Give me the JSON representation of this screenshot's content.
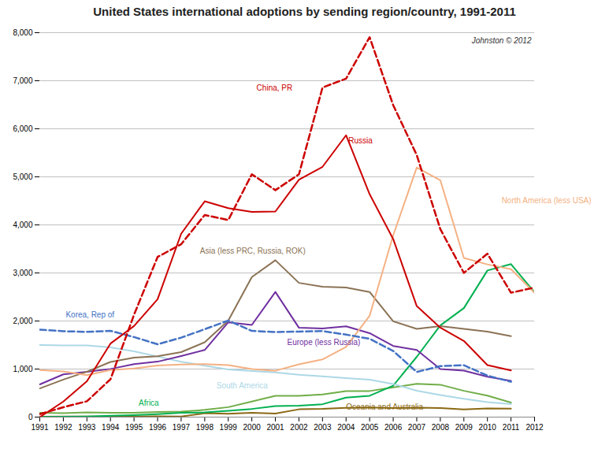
{
  "chart_data": {
    "type": "line",
    "title": "United States international adoptions by sending region/country, 1991-2011",
    "x": [
      1991,
      1992,
      1993,
      1994,
      1995,
      1996,
      1997,
      1998,
      1999,
      2000,
      2001,
      2002,
      2003,
      2004,
      2005,
      2006,
      2007,
      2008,
      2009,
      2010,
      2011,
      2012
    ],
    "series": [
      {
        "color": "#cc0000",
        "line_style": "dashed",
        "values": [
          61,
          206,
          330,
          787,
          2130,
          3333,
          3597,
          4206,
          4101,
          5053,
          4723,
          5053,
          6859,
          7044,
          7906,
          6493,
          5453,
          3912,
          3001,
          3401,
          2589,
          2696
        ]
      },
      {
        "color": "#cc0000",
        "line_style": "solid",
        "values": [
          0,
          324,
          746,
          1530,
          1896,
          2454,
          3816,
          4491,
          4348,
          4269,
          4279,
          4939,
          5209,
          5865,
          4639,
          3706,
          2310,
          1861,
          1586,
          1082,
          970,
          null
        ]
      },
      {
        "color": "#4472c4",
        "line_style": "dashed",
        "values": [
          1818,
          1787,
          1775,
          1795,
          1666,
          1516,
          1654,
          1829,
          2008,
          1794,
          1770,
          1779,
          1790,
          1716,
          1630,
          1376,
          939,
          1061,
          1080,
          863,
          736,
          null
        ]
      },
      {
        "color": "#f4b183",
        "line_style": "solid",
        "values": [
          979,
          952,
          872,
          978,
          1014,
          1075,
          1095,
          1104,
          1082,
          1001,
          965,
          1099,
          1200,
          1461,
          2110,
          3783,
          5195,
          4930,
          3311,
          3178,
          3078,
          2587
        ]
      },
      {
        "color": "#8b7355",
        "line_style": "solid",
        "values": [
          597,
          780,
          944,
          1148,
          1238,
          1266,
          1353,
          1558,
          2007,
          2913,
          3264,
          2793,
          2712,
          2695,
          2604,
          1994,
          1836,
          1893,
          1838,
          1779,
          1683,
          null
        ]
      },
      {
        "color": "#7030a0",
        "line_style": "solid",
        "values": [
          680,
          890,
          944,
          1002,
          1104,
          1154,
          1272,
          1396,
          1973,
          1918,
          2604,
          1859,
          1843,
          1890,
          1746,
          1480,
          1398,
          1000,
          966,
          840,
          754,
          null
        ]
      },
      {
        "color": "#add8e6",
        "line_style": "solid",
        "values": [
          1500,
          1490,
          1490,
          1450,
          1370,
          1260,
          1150,
          1070,
          990,
          960,
          930,
          880,
          850,
          810,
          780,
          690,
          550,
          460,
          380,
          310,
          270,
          null
        ]
      },
      {
        "color": "#00b050",
        "line_style": "solid",
        "values": [
          5,
          10,
          14,
          28,
          42,
          62,
          90,
          97,
          131,
          170,
          229,
          238,
          268,
          405,
          444,
          654,
          1254,
          1907,
          2268,
          3051,
          3184,
          2596
        ]
      },
      {
        "color": "#8b6914",
        "line_style": "solid",
        "values": [
          10,
          11,
          12,
          13,
          14,
          15,
          14,
          80,
          71,
          90,
          73,
          162,
          172,
          193,
          202,
          188,
          198,
          187,
          161,
          180,
          175,
          null
        ]
      },
      {
        "color": "#70ad47",
        "line_style": "solid",
        "values": [
          90,
          84,
          99,
          92,
          91,
          107,
          114,
          150,
          207,
          325,
          444,
          444,
          471,
          540,
          543,
          617,
          692,
          674,
          547,
          446,
          303,
          null
        ]
      }
    ],
    "annotations": [
      {
        "text": "China, PR",
        "x": 2000.2,
        "y": 6850,
        "color": "#cc0000"
      },
      {
        "text": "Russia",
        "x": 2004.1,
        "y": 5750,
        "color": "#cc0000"
      },
      {
        "text": "Korea, Rep of",
        "x": 1992.1,
        "y": 2130,
        "color": "#4472c4"
      },
      {
        "text": "North America (less USA)",
        "x": 2010.6,
        "y": 4500,
        "color": "#f4b183"
      },
      {
        "text": "Asia (less PRC, Russia, ROK)",
        "x": 1997.8,
        "y": 3450,
        "color": "#8b7355"
      },
      {
        "text": "Europe (less Russia)",
        "x": 2001.5,
        "y": 1550,
        "color": "#7030a0"
      },
      {
        "text": "South America",
        "x": 1998.5,
        "y": 650,
        "color": "#add8e6"
      },
      {
        "text": "Africa",
        "x": 1995.2,
        "y": 290,
        "color": "#00b050"
      },
      {
        "text": "Oceania and Australia",
        "x": 2004.0,
        "y": 215,
        "color": "#8b6914"
      },
      {
        "text": "Johnston © 2012"
      }
    ],
    "xlim": [
      1991,
      2012
    ],
    "xticks": [
      1991,
      1992,
      1993,
      1994,
      1995,
      1996,
      1997,
      1998,
      1999,
      2000,
      2001,
      2002,
      2003,
      2004,
      2005,
      2006,
      2007,
      2008,
      2009,
      2010,
      2011,
      2012
    ],
    "ylim": [
      0,
      8000
    ],
    "yticks": [
      0,
      {
        "value": 1000,
        "label": "1,000"
      },
      {
        "value": 2000,
        "label": "2,000"
      },
      {
        "value": 3000,
        "label": "3,000"
      },
      {
        "value": 4000,
        "label": "4,000"
      },
      {
        "value": 5000,
        "label": "5,000"
      },
      {
        "value": 6000,
        "label": "6,000"
      },
      {
        "value": 7000,
        "label": "7,000"
      },
      {
        "value": 8000,
        "label": "8,000"
      }
    ],
    "grid": "y"
  }
}
